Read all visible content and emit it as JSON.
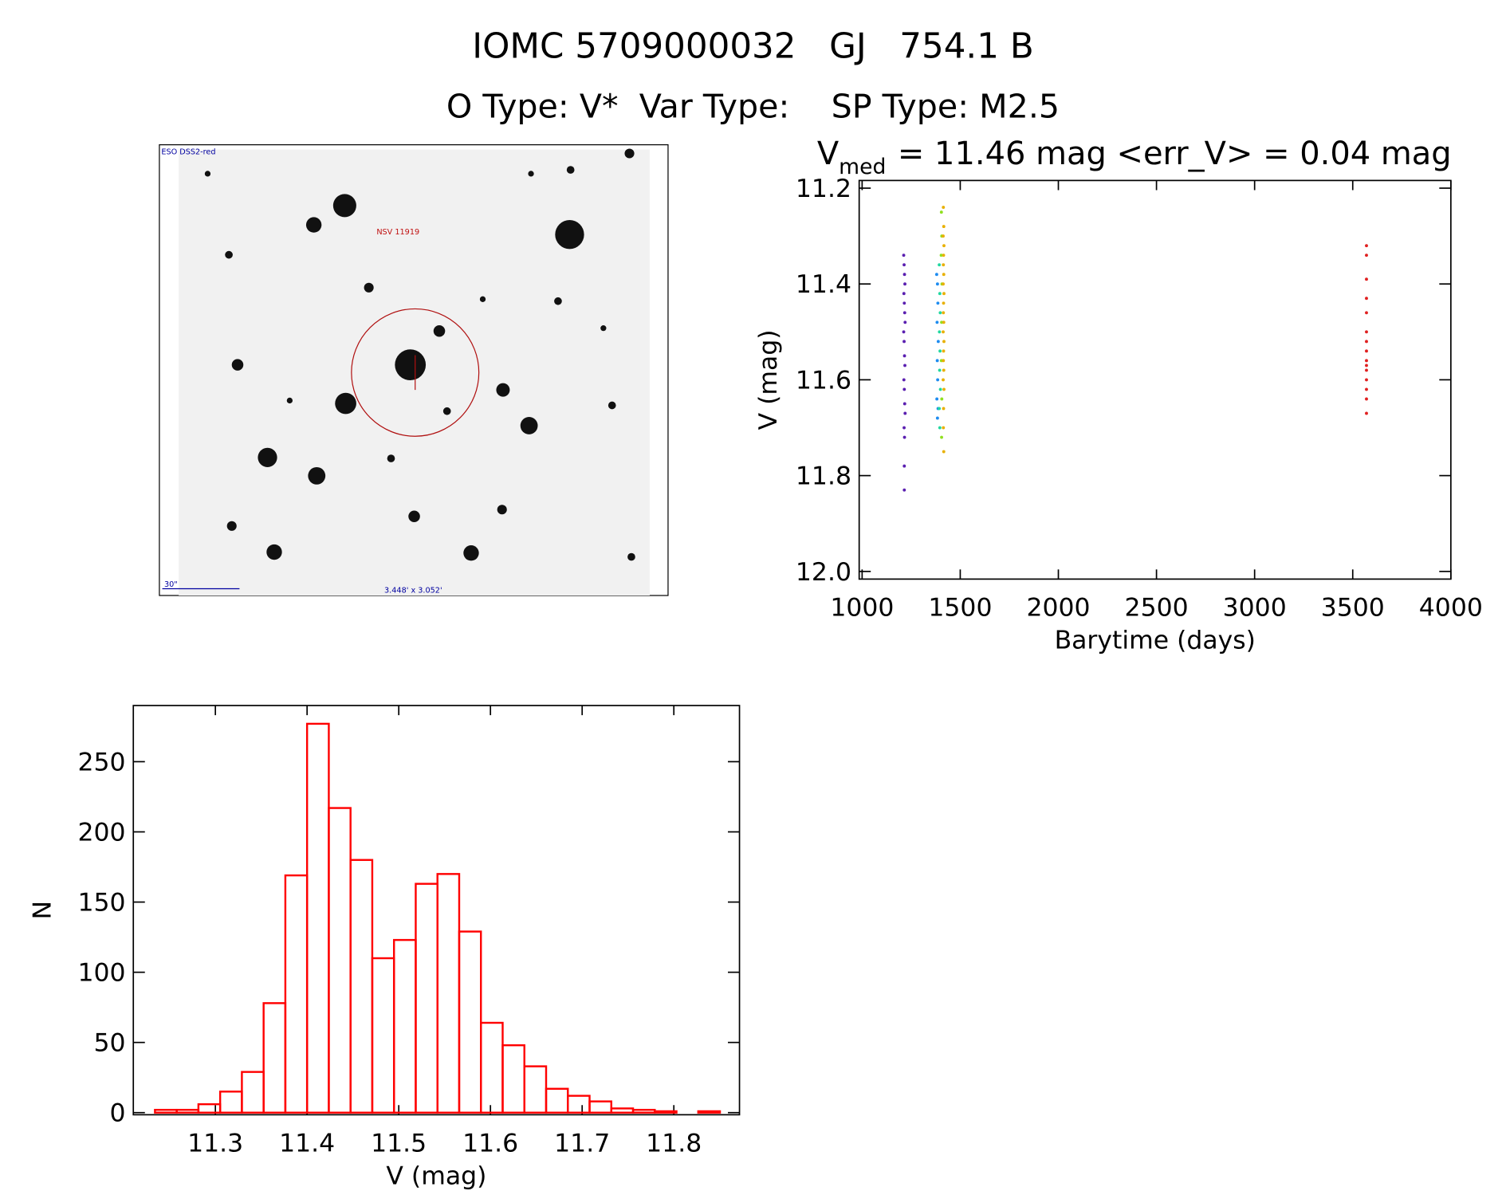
{
  "title": "IOMC 5709000032   GJ   754.1 B",
  "subtitle": "O Type: V*  Var Type:    SP Type: M2.5",
  "image": {
    "survey": "ESO DSS2-red",
    "label": "NSV 11919",
    "scale": "30\"",
    "size": "3.448' x 3.052'"
  },
  "chart_data": [
    {
      "type": "scatter",
      "title": "V",
      "title_subscript": "med",
      "title_rest": "= 11.46 mag <err_V> = 0.04 mag",
      "xlabel": "Barytime (days)",
      "ylabel": "V (mag)",
      "xlim": [
        985,
        4000
      ],
      "xticks": [
        1000,
        1500,
        2000,
        2500,
        3000,
        3500,
        4000
      ],
      "ylim": [
        12.016,
        11.184
      ],
      "yticks": [
        11.2,
        11.4,
        11.6,
        11.8,
        {
          "value": 12,
          "label": "12.0"
        }
      ],
      "series": [
        {
          "color": "#5a1fb0",
          "x": [
            1212,
            1214,
            1216,
            1218,
            1213,
            1215,
            1217,
            1219,
            1212,
            1214,
            1216,
            1218,
            1213,
            1215,
            1217,
            1219,
            1214,
            1216,
            1215,
            1215
          ],
          "values": [
            11.34,
            11.36,
            11.38,
            11.4,
            11.42,
            11.44,
            11.46,
            11.48,
            11.5,
            11.52,
            11.55,
            11.57,
            11.6,
            11.62,
            11.65,
            11.67,
            11.7,
            11.72,
            11.78,
            11.83
          ]
        },
        {
          "color": "#1e8cf0",
          "x": [
            1380,
            1384,
            1386,
            1382,
            1388,
            1383,
            1385,
            1381,
            1387,
            1384
          ],
          "values": [
            11.38,
            11.4,
            11.44,
            11.48,
            11.52,
            11.56,
            11.6,
            11.64,
            11.66,
            11.68
          ]
        },
        {
          "color": "#20d8a0",
          "x": [
            1393,
            1396,
            1398,
            1394,
            1397,
            1395,
            1399,
            1393,
            1396
          ],
          "values": [
            11.36,
            11.42,
            11.46,
            11.5,
            11.54,
            11.58,
            11.62,
            11.66,
            11.7
          ]
        },
        {
          "color": "#90e020",
          "x": [
            1404,
            1406,
            1403,
            1407,
            1405,
            1404,
            1406,
            1405
          ],
          "values": [
            11.25,
            11.3,
            11.34,
            11.4,
            11.48,
            11.56,
            11.64,
            11.72
          ]
        },
        {
          "color": "#e8b000",
          "x": [
            1414,
            1416,
            1413,
            1417,
            1415,
            1414,
            1416,
            1413,
            1417,
            1415,
            1414,
            1416,
            1413,
            1417,
            1415,
            1414,
            1416,
            1413,
            1417,
            1415,
            1414,
            1416
          ],
          "values": [
            11.24,
            11.28,
            11.3,
            11.32,
            11.34,
            11.36,
            11.38,
            11.4,
            11.42,
            11.44,
            11.46,
            11.48,
            11.5,
            11.52,
            11.54,
            11.56,
            11.58,
            11.6,
            11.62,
            11.66,
            11.7,
            11.75
          ]
        },
        {
          "color": "#e02020",
          "x": [
            3570,
            3570,
            3570,
            3570,
            3570,
            3570,
            3570,
            3570,
            3570,
            3570,
            3570,
            3570,
            3570,
            3570,
            3570
          ],
          "values": [
            11.32,
            11.34,
            11.39,
            11.43,
            11.46,
            11.5,
            11.52,
            11.54,
            11.56,
            11.57,
            11.58,
            11.6,
            11.62,
            11.64,
            11.67
          ]
        }
      ]
    },
    {
      "type": "histogram",
      "color": "#ff0000",
      "xlabel": "V (mag)",
      "ylabel": "N",
      "xlim": [
        11.2105,
        11.8716
      ],
      "xticks": [
        11.3,
        11.4,
        11.5,
        11.6,
        11.7,
        11.8
      ],
      "ylim": [
        -1.5,
        290
      ],
      "yticks": [
        0,
        50,
        100,
        150,
        200,
        250
      ],
      "bins": [
        11.2341,
        11.2578,
        11.2815,
        11.3052,
        11.3289,
        11.3526,
        11.3763,
        11.4,
        11.4237,
        11.4474,
        11.4711,
        11.4948,
        11.5185,
        11.5422,
        11.5659,
        11.5896,
        11.6133,
        11.637,
        11.6607,
        11.6844,
        11.7081,
        11.7318,
        11.7555,
        11.7792,
        11.8029,
        11.8266,
        11.8503
      ],
      "values": [
        2,
        2,
        6,
        15,
        29,
        78,
        169,
        277,
        217,
        180,
        110,
        123,
        163,
        170,
        129,
        64,
        48,
        33,
        17,
        12,
        8,
        3,
        2,
        1,
        0,
        1
      ]
    }
  ]
}
